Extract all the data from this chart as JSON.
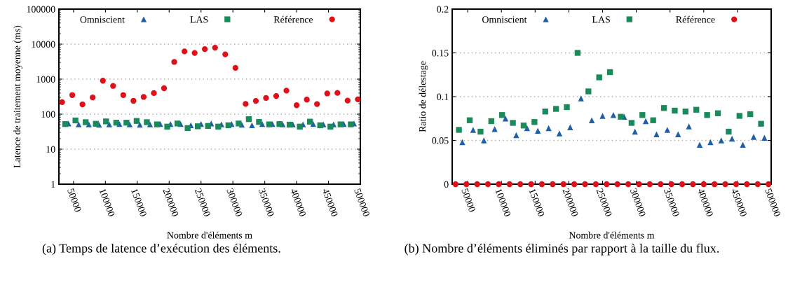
{
  "chart_data": [
    {
      "type": "scatter",
      "ylabel": "Latence de traitement moyenne (ms)",
      "xlabel": "Nombre d'éléments m",
      "log": "y",
      "grid": "y",
      "legend": "top",
      "xlim": [
        27000,
        500000
      ],
      "xticks": [
        50000,
        100000,
        150000,
        200000,
        250000,
        300000,
        350000,
        400000,
        450000,
        500000
      ],
      "ylim": [
        1,
        100000
      ],
      "yticks": [
        1,
        10,
        100,
        1000,
        10000,
        100000
      ],
      "series": [
        {
          "name": "Omniscient",
          "color": "#1f5fa8",
          "marker": "triangle",
          "x": [
            42000,
            58000,
            74000,
            90000,
            106000,
            122000,
            138000,
            154000,
            170000,
            186000,
            202000,
            218000,
            234000,
            250000,
            266000,
            282000,
            298000,
            314000,
            330000,
            346000,
            362000,
            378000,
            394000,
            410000,
            426000,
            442000,
            458000,
            474000,
            490000
          ],
          "values": [
            54,
            51,
            51,
            50,
            51,
            52,
            51,
            50,
            51,
            52,
            52,
            52,
            48,
            52,
            54,
            51,
            52,
            50,
            48,
            52,
            52,
            51,
            51,
            51,
            52,
            51,
            51,
            52,
            54
          ]
        },
        {
          "name": "LAS",
          "color": "#1b8a5a",
          "marker": "square",
          "x": [
            37000,
            53000,
            69000,
            85000,
            101000,
            117000,
            133000,
            149000,
            165000,
            181000,
            197000,
            213000,
            229000,
            245000,
            261000,
            277000,
            293000,
            309000,
            325000,
            341000,
            357000,
            373000,
            389000,
            405000,
            421000,
            437000,
            453000,
            469000,
            485000
          ],
          "values": [
            52,
            66,
            59,
            53,
            62,
            57,
            57,
            64,
            59,
            51,
            44,
            54,
            40,
            45,
            46,
            44,
            48,
            54,
            72,
            60,
            51,
            52,
            50,
            44,
            61,
            48,
            44,
            51,
            51
          ]
        },
        {
          "name": "Référence",
          "color": "#e0101a",
          "marker": "circle",
          "x": [
            32000,
            48000,
            64000,
            80000,
            96000,
            112000,
            128000,
            144000,
            160000,
            176000,
            192000,
            208000,
            224000,
            240000,
            256000,
            272000,
            288000,
            304000,
            320000,
            336000,
            352000,
            368000,
            384000,
            400000,
            416000,
            432000,
            448000,
            464000,
            480000,
            496000
          ],
          "values": [
            220,
            350,
            190,
            300,
            900,
            640,
            350,
            240,
            310,
            400,
            550,
            3100,
            6200,
            5600,
            7200,
            7900,
            5100,
            2100,
            196,
            238,
            290,
            330,
            470,
            180,
            260,
            194,
            390,
            405,
            244,
            265
          ]
        }
      ],
      "annotations": [
        "(a) Temps de latence d’exécution des éléments."
      ]
    },
    {
      "type": "scatter",
      "ylabel": "Ratio de délestage",
      "xlabel": "Nombre d'éléments m",
      "grid": "y",
      "legend": "top",
      "xlim": [
        27000,
        500000
      ],
      "xticks": [
        50000,
        100000,
        150000,
        200000,
        250000,
        300000,
        350000,
        400000,
        450000,
        500000
      ],
      "ylim": [
        0,
        0.2
      ],
      "yticks": [
        0,
        0.05,
        0.1,
        0.15,
        0.2
      ],
      "series": [
        {
          "name": "Omniscient",
          "color": "#1f5fa8",
          "marker": "triangle",
          "x": [
            42000,
            58000,
            74000,
            90000,
            106000,
            122000,
            138000,
            154000,
            170000,
            186000,
            202000,
            218000,
            234000,
            250000,
            266000,
            282000,
            298000,
            314000,
            330000,
            346000,
            362000,
            378000,
            394000,
            410000,
            426000,
            442000,
            458000,
            474000,
            490000
          ],
          "values": [
            0.048,
            0.062,
            0.05,
            0.063,
            0.075,
            0.056,
            0.064,
            0.061,
            0.064,
            0.058,
            0.065,
            0.098,
            0.073,
            0.078,
            0.079,
            0.077,
            0.06,
            0.072,
            0.057,
            0.062,
            0.057,
            0.066,
            0.045,
            0.048,
            0.05,
            0.052,
            0.045,
            0.054,
            0.053
          ]
        },
        {
          "name": "LAS",
          "color": "#1b8a5a",
          "marker": "square",
          "x": [
            37000,
            53000,
            69000,
            85000,
            101000,
            117000,
            133000,
            149000,
            165000,
            181000,
            197000,
            213000,
            229000,
            245000,
            261000,
            277000,
            293000,
            309000,
            325000,
            341000,
            357000,
            373000,
            389000,
            405000,
            421000,
            437000,
            453000,
            469000,
            485000
          ],
          "values": [
            0.062,
            0.073,
            0.06,
            0.072,
            0.079,
            0.07,
            0.067,
            0.071,
            0.083,
            0.086,
            0.088,
            0.15,
            0.106,
            0.122,
            0.128,
            0.077,
            0.07,
            0.079,
            0.073,
            0.087,
            0.084,
            0.083,
            0.085,
            0.079,
            0.081,
            0.06,
            0.078,
            0.08,
            0.069
          ]
        },
        {
          "name": "Référence",
          "color": "#e0101a",
          "marker": "circle",
          "x": [
            32000,
            48000,
            64000,
            80000,
            96000,
            112000,
            128000,
            144000,
            160000,
            176000,
            192000,
            208000,
            224000,
            240000,
            256000,
            272000,
            288000,
            304000,
            320000,
            336000,
            352000,
            368000,
            384000,
            400000,
            416000,
            432000,
            448000,
            464000,
            480000,
            496000
          ],
          "values": [
            0,
            0,
            0,
            0,
            0,
            0,
            0,
            0,
            0,
            0,
            0,
            0,
            0,
            0,
            0,
            0,
            0,
            0,
            0,
            0,
            0,
            0,
            0,
            0,
            0,
            0,
            0,
            0,
            0,
            0
          ]
        }
      ],
      "annotations": [
        "(b) Nombre d’éléments éliminés par rapport à la taille du flux."
      ]
    }
  ]
}
